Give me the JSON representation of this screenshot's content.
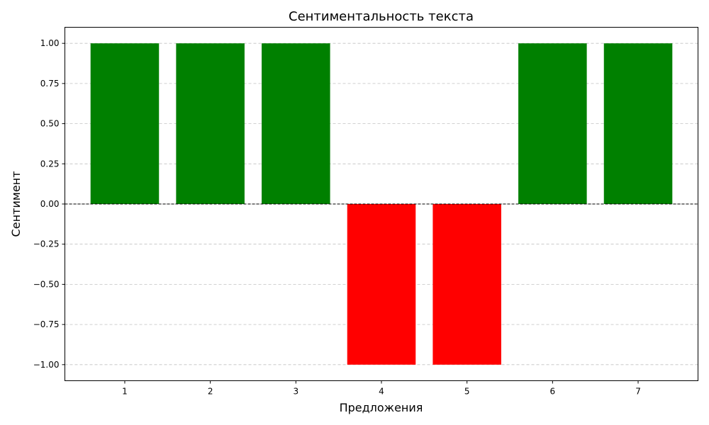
{
  "chart_data": {
    "type": "bar",
    "title": "Сентиментальность текста",
    "xlabel": "Предложения",
    "ylabel": "Сентимент",
    "categories": [
      "1",
      "2",
      "3",
      "4",
      "5",
      "6",
      "7"
    ],
    "values": [
      1,
      1,
      1,
      -1,
      -1,
      1,
      1
    ],
    "ylim": [
      -1.1,
      1.1
    ],
    "yticks": [
      -1.0,
      -0.75,
      -0.5,
      -0.25,
      0.0,
      0.25,
      0.5,
      0.75,
      1.0
    ],
    "ytick_labels": [
      "−1.00",
      "−0.75",
      "−0.50",
      "−0.25",
      "0.00",
      "0.25",
      "0.50",
      "0.75",
      "1.00"
    ],
    "grid": "y-dashed",
    "zero_line": "dashed",
    "colors": {
      "positive": "#008000",
      "negative": "#ff0000",
      "grid": "#c0c0c0",
      "axis": "#000000"
    }
  }
}
